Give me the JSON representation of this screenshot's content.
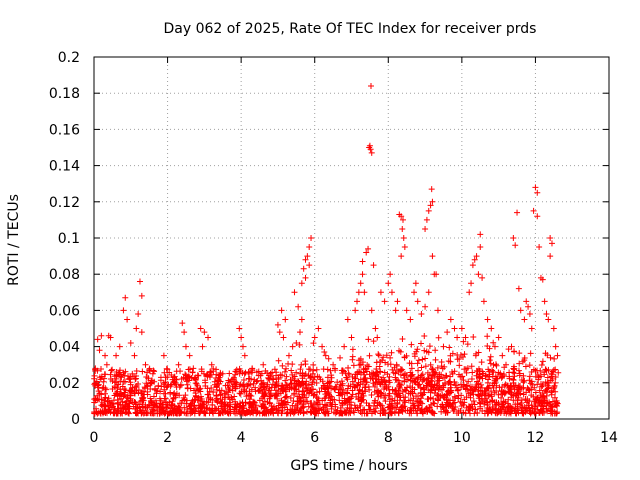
{
  "chart_data": {
    "type": "scatter",
    "title": "Day 062 of 2025, Rate Of TEC Index for receiver prds",
    "xlabel": "GPS time / hours",
    "ylabel": "ROTI / TECUs",
    "xlim": [
      0,
      14
    ],
    "ylim": [
      0,
      0.2
    ],
    "xticks": [
      0,
      2,
      4,
      6,
      8,
      10,
      12,
      14
    ],
    "xtick_labels": [
      "0",
      "2",
      "4",
      "6",
      "8",
      "10",
      "12",
      "14"
    ],
    "yticks": [
      0,
      0.02,
      0.04,
      0.06,
      0.08,
      0.1,
      0.12,
      0.14,
      0.16,
      0.18,
      0.2
    ],
    "ytick_labels": [
      "0",
      "0.02",
      "0.04",
      "0.06",
      "0.08",
      "0.1",
      "0.12",
      "0.14",
      "0.16",
      "0.18",
      "0.2"
    ],
    "grid": true,
    "marker": "+",
    "color": "#ff0000",
    "series": [
      {
        "name": "ROTI",
        "points": [
          [
            0.1,
            0.044
          ],
          [
            0.2,
            0.046
          ],
          [
            0.15,
            0.038
          ],
          [
            0.3,
            0.035
          ],
          [
            0.4,
            0.046
          ],
          [
            0.45,
            0.045
          ],
          [
            0.35,
            0.03
          ],
          [
            0.85,
            0.067
          ],
          [
            0.8,
            0.06
          ],
          [
            0.9,
            0.055
          ],
          [
            0.7,
            0.04
          ],
          [
            0.6,
            0.035
          ],
          [
            1.25,
            0.076
          ],
          [
            1.3,
            0.068
          ],
          [
            1.2,
            0.058
          ],
          [
            1.15,
            0.05
          ],
          [
            1.3,
            0.048
          ],
          [
            1.0,
            0.042
          ],
          [
            1.1,
            0.035
          ],
          [
            1.4,
            0.03
          ],
          [
            1.6,
            0.025
          ],
          [
            1.9,
            0.035
          ],
          [
            2.2,
            0.02
          ],
          [
            2.3,
            0.03
          ],
          [
            2.4,
            0.053
          ],
          [
            2.45,
            0.048
          ],
          [
            2.5,
            0.04
          ],
          [
            2.6,
            0.035
          ],
          [
            2.7,
            0.028
          ],
          [
            2.9,
            0.05
          ],
          [
            3.0,
            0.048
          ],
          [
            3.1,
            0.045
          ],
          [
            2.95,
            0.04
          ],
          [
            3.2,
            0.03
          ],
          [
            3.5,
            0.025
          ],
          [
            3.8,
            0.022
          ],
          [
            3.95,
            0.05
          ],
          [
            4.0,
            0.045
          ],
          [
            4.05,
            0.04
          ],
          [
            4.1,
            0.035
          ],
          [
            4.3,
            0.028
          ],
          [
            4.6,
            0.03
          ],
          [
            4.8,
            0.025
          ],
          [
            5.0,
            0.052
          ],
          [
            5.1,
            0.06
          ],
          [
            5.2,
            0.055
          ],
          [
            5.05,
            0.048
          ],
          [
            5.15,
            0.045
          ],
          [
            5.3,
            0.035
          ],
          [
            5.4,
            0.04
          ],
          [
            5.5,
            0.042
          ],
          [
            5.6,
            0.048
          ],
          [
            5.65,
            0.055
          ],
          [
            5.55,
            0.062
          ],
          [
            5.45,
            0.07
          ],
          [
            5.7,
            0.083
          ],
          [
            5.75,
            0.088
          ],
          [
            5.8,
            0.09
          ],
          [
            5.85,
            0.095
          ],
          [
            5.9,
            0.1
          ],
          [
            5.85,
            0.085
          ],
          [
            5.75,
            0.078
          ],
          [
            5.65,
            0.075
          ],
          [
            6.0,
            0.045
          ],
          [
            6.1,
            0.05
          ],
          [
            6.2,
            0.04
          ],
          [
            6.3,
            0.035
          ],
          [
            6.5,
            0.03
          ],
          [
            6.8,
            0.04
          ],
          [
            6.9,
            0.055
          ],
          [
            7.0,
            0.045
          ],
          [
            7.1,
            0.06
          ],
          [
            7.15,
            0.065
          ],
          [
            7.2,
            0.07
          ],
          [
            7.25,
            0.075
          ],
          [
            7.3,
            0.08
          ],
          [
            7.3,
            0.087
          ],
          [
            7.4,
            0.092
          ],
          [
            7.45,
            0.094
          ],
          [
            7.35,
            0.07
          ],
          [
            7.5,
            0.151
          ],
          [
            7.52,
            0.149
          ],
          [
            7.48,
            0.15
          ],
          [
            7.55,
            0.147
          ],
          [
            7.53,
            0.184
          ],
          [
            7.6,
            0.085
          ],
          [
            7.55,
            0.06
          ],
          [
            7.65,
            0.05
          ],
          [
            7.7,
            0.045
          ],
          [
            7.8,
            0.07
          ],
          [
            7.9,
            0.065
          ],
          [
            8.0,
            0.075
          ],
          [
            8.05,
            0.08
          ],
          [
            8.1,
            0.07
          ],
          [
            8.2,
            0.06
          ],
          [
            8.25,
            0.065
          ],
          [
            8.3,
            0.113
          ],
          [
            8.35,
            0.112
          ],
          [
            8.4,
            0.11
          ],
          [
            8.38,
            0.105
          ],
          [
            8.42,
            0.1
          ],
          [
            8.45,
            0.095
          ],
          [
            8.35,
            0.09
          ],
          [
            8.5,
            0.06
          ],
          [
            8.6,
            0.055
          ],
          [
            8.7,
            0.07
          ],
          [
            8.75,
            0.075
          ],
          [
            8.8,
            0.065
          ],
          [
            8.9,
            0.058
          ],
          [
            9.0,
            0.105
          ],
          [
            9.05,
            0.11
          ],
          [
            9.1,
            0.115
          ],
          [
            9.15,
            0.118
          ],
          [
            9.2,
            0.12
          ],
          [
            9.18,
            0.127
          ],
          [
            9.2,
            0.09
          ],
          [
            9.25,
            0.08
          ],
          [
            9.3,
            0.08
          ],
          [
            9.0,
            0.062
          ],
          [
            9.1,
            0.07
          ],
          [
            9.35,
            0.06
          ],
          [
            9.5,
            0.04
          ],
          [
            9.6,
            0.048
          ],
          [
            9.7,
            0.055
          ],
          [
            9.8,
            0.05
          ],
          [
            10.0,
            0.05
          ],
          [
            10.1,
            0.045
          ],
          [
            10.2,
            0.07
          ],
          [
            10.25,
            0.075
          ],
          [
            10.3,
            0.085
          ],
          [
            10.35,
            0.088
          ],
          [
            10.4,
            0.09
          ],
          [
            10.45,
            0.08
          ],
          [
            10.5,
            0.102
          ],
          [
            10.5,
            0.095
          ],
          [
            10.55,
            0.078
          ],
          [
            10.6,
            0.065
          ],
          [
            10.7,
            0.055
          ],
          [
            10.8,
            0.05
          ],
          [
            10.9,
            0.04
          ],
          [
            11.0,
            0.045
          ],
          [
            11.1,
            0.035
          ],
          [
            11.2,
            0.03
          ],
          [
            11.35,
            0.04
          ],
          [
            11.4,
            0.1
          ],
          [
            11.45,
            0.096
          ],
          [
            11.5,
            0.114
          ],
          [
            11.55,
            0.072
          ],
          [
            11.6,
            0.06
          ],
          [
            11.7,
            0.055
          ],
          [
            11.75,
            0.065
          ],
          [
            11.8,
            0.062
          ],
          [
            11.85,
            0.058
          ],
          [
            11.9,
            0.05
          ],
          [
            11.95,
            0.115
          ],
          [
            12.0,
            0.128
          ],
          [
            12.05,
            0.125
          ],
          [
            12.05,
            0.112
          ],
          [
            12.1,
            0.095
          ],
          [
            12.15,
            0.078
          ],
          [
            12.2,
            0.077
          ],
          [
            12.25,
            0.065
          ],
          [
            12.3,
            0.058
          ],
          [
            12.35,
            0.055
          ],
          [
            12.4,
            0.1
          ],
          [
            12.45,
            0.097
          ],
          [
            12.4,
            0.09
          ],
          [
            12.5,
            0.05
          ],
          [
            12.55,
            0.04
          ],
          [
            12.6,
            0.035
          ]
        ]
      }
    ]
  }
}
